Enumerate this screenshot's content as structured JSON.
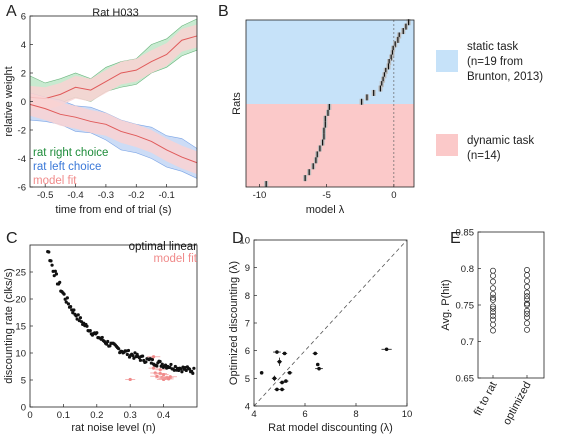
{
  "panel_letters": [
    "A",
    "B",
    "C",
    "D",
    "E"
  ],
  "chart_data": [
    {
      "id": "A",
      "type": "line",
      "title": "Rat H033",
      "xlabel": "time from end of trial (s)",
      "ylabel": "relative weight",
      "xlim": [
        -0.55,
        0.0
      ],
      "ylim": [
        -6,
        6
      ],
      "xticks": [
        -0.5,
        -0.4,
        -0.3,
        -0.2,
        -0.1
      ],
      "xtick_labels": [
        "-0.5",
        "-0.4",
        "-0.3",
        "-0.2",
        "-0.1"
      ],
      "yticks": [
        -6,
        -4,
        -2,
        0,
        2,
        4,
        6
      ],
      "ytick_labels": [
        "-6",
        "-4",
        "-2",
        "0",
        "2",
        "4",
        "6"
      ],
      "legend": [
        {
          "name": "rat right choice",
          "color": "#1e8c3a"
        },
        {
          "name": "rat left choice",
          "color": "#3a78d8"
        },
        {
          "name": "model fit",
          "color": "#f08a8a"
        }
      ],
      "legend_position": "bottom-left",
      "series": [
        {
          "name": "rat right choice",
          "x": [
            -0.55,
            -0.5,
            -0.45,
            -0.4,
            -0.35,
            -0.3,
            -0.25,
            -0.2,
            -0.15,
            -0.1,
            -0.05,
            0.0
          ],
          "upper": [
            1.8,
            1.3,
            1.6,
            2.0,
            1.6,
            2.4,
            2.8,
            3.0,
            4.0,
            4.4,
            5.3,
            5.8
          ],
          "lower": [
            -0.4,
            -0.3,
            -0.1,
            0.3,
            0.0,
            0.7,
            1.0,
            1.2,
            2.0,
            2.4,
            3.2,
            3.6
          ],
          "color": "#c8ead0"
        },
        {
          "name": "rat left choice",
          "x": [
            -0.55,
            -0.5,
            -0.45,
            -0.4,
            -0.35,
            -0.3,
            -0.25,
            -0.2,
            -0.15,
            -0.1,
            -0.05,
            0.0
          ],
          "upper": [
            0.6,
            0.3,
            0.1,
            -0.3,
            -0.4,
            -0.8,
            -1.3,
            -1.6,
            -1.8,
            -2.4,
            -2.6,
            -3.3
          ],
          "lower": [
            -1.3,
            -1.4,
            -1.6,
            -2.1,
            -2.2,
            -2.7,
            -3.4,
            -3.6,
            -4.0,
            -4.6,
            -4.9,
            -5.4
          ],
          "color": "#ccdcf6"
        },
        {
          "name": "model fit (upper)",
          "x": [
            -0.55,
            -0.5,
            -0.45,
            -0.4,
            -0.35,
            -0.3,
            -0.25,
            -0.2,
            -0.15,
            -0.1,
            -0.05,
            0.0
          ],
          "y": [
            0.3,
            0.2,
            0.5,
            1.0,
            0.8,
            1.4,
            2.0,
            2.2,
            2.8,
            3.3,
            4.3,
            4.6
          ],
          "band": 0.8,
          "color": "#f08a8a",
          "band_color": "#f9d2d2"
        },
        {
          "name": "model fit (lower)",
          "x": [
            -0.55,
            -0.5,
            -0.45,
            -0.4,
            -0.35,
            -0.3,
            -0.25,
            -0.2,
            -0.15,
            -0.1,
            -0.05,
            0.0
          ],
          "y": [
            -0.2,
            -0.5,
            -0.9,
            -1.1,
            -1.4,
            -1.6,
            -2.1,
            -2.4,
            -2.8,
            -3.4,
            -3.9,
            -4.3
          ],
          "band": 0.8,
          "color": "#f08a8a",
          "band_color": "#f9d2d2"
        }
      ]
    },
    {
      "id": "B",
      "type": "scatter",
      "xlabel": "model λ",
      "ylabel": "Rats",
      "xlim": [
        -11,
        1.5
      ],
      "xticks": [
        -10,
        -5,
        0
      ],
      "xtick_labels": [
        "-10",
        "-5",
        "0"
      ],
      "vline": 0,
      "groups": [
        {
          "name": "static task",
          "note": "(n=19 from",
          "note2": "Brunton, 2013)",
          "color": "#c6e2f9",
          "n": 19
        },
        {
          "name": "dynamic task",
          "note": "(n=14)",
          "color": "#fbc9c9",
          "n": 14
        }
      ],
      "static_lambdas": [
        1.1,
        0.9,
        0.7,
        0.4,
        0.3,
        0.1,
        -0.05,
        -0.1,
        -0.2,
        -0.35,
        -0.4,
        -0.6,
        -0.7,
        -0.8,
        -0.9,
        -1.0,
        -1.5,
        -2.0,
        -2.4
      ],
      "dynamic_lambdas": [
        -4.8,
        -4.9,
        -5.1,
        -5.1,
        -5.2,
        -5.2,
        -5.3,
        -5.5,
        -5.7,
        -5.8,
        -6.0,
        -6.3,
        -6.6,
        -9.5
      ]
    },
    {
      "id": "C",
      "type": "scatter",
      "xlabel": "rat noise level (n)",
      "ylabel": "discounting rate (clks/s)",
      "xlim": [
        0,
        0.5
      ],
      "ylim": [
        0,
        30
      ],
      "xticks": [
        0,
        0.1,
        0.2,
        0.3,
        0.4
      ],
      "xtick_labels": [
        "0",
        "0.1",
        "0.2",
        "0.3",
        "0.4"
      ],
      "yticks": [
        0,
        5,
        10,
        15,
        20,
        25
      ],
      "ytick_labels": [
        "0",
        "5",
        "10",
        "15",
        "20",
        "25"
      ],
      "legend": [
        {
          "name": "optimal linear",
          "color": "#111111"
        },
        {
          "name": "model fit",
          "color": "#f08a8a"
        }
      ],
      "legend_position": "top-right",
      "optimal_curve": {
        "a": 3.2,
        "b": 0.06,
        "c": 0.9
      },
      "model_fit_points": [
        {
          "x": 0.37,
          "y": 9.3,
          "xerr": 0.02
        },
        {
          "x": 0.37,
          "y": 7.2,
          "xerr": 0.015
        },
        {
          "x": 0.375,
          "y": 6.3,
          "xerr": 0.015
        },
        {
          "x": 0.38,
          "y": 5.7,
          "xerr": 0.02
        },
        {
          "x": 0.39,
          "y": 6.9,
          "xerr": 0.015
        },
        {
          "x": 0.39,
          "y": 6.2,
          "xerr": 0.02
        },
        {
          "x": 0.395,
          "y": 5.4,
          "xerr": 0.02
        },
        {
          "x": 0.4,
          "y": 5.1,
          "xerr": 0.02
        },
        {
          "x": 0.4,
          "y": 6.0,
          "xerr": 0.015
        },
        {
          "x": 0.405,
          "y": 5.3,
          "xerr": 0.02
        },
        {
          "x": 0.41,
          "y": 5.5,
          "xerr": 0.02
        },
        {
          "x": 0.415,
          "y": 5.2,
          "xerr": 0.015
        },
        {
          "x": 0.42,
          "y": 5.6,
          "xerr": 0.02
        },
        {
          "x": 0.3,
          "y": 5.1,
          "xerr": 0.015
        }
      ]
    },
    {
      "id": "D",
      "type": "scatter",
      "xlabel": "Rat model discounting (λ)",
      "ylabel": "Optimized discounting (λ)",
      "xlim": [
        4,
        10
      ],
      "ylim": [
        4,
        10
      ],
      "xticks": [
        4,
        6,
        8,
        10
      ],
      "xtick_labels": [
        "4",
        "6",
        "8",
        "10"
      ],
      "yticks": [
        4,
        5,
        6,
        7,
        8,
        9,
        10
      ],
      "ytick_labels": [
        "4",
        "5",
        "6",
        "7",
        "8",
        "9",
        "10"
      ],
      "diagonal": true,
      "points": [
        {
          "x": 4.3,
          "y": 5.2,
          "xerr": 0.05,
          "yerr": 0.05
        },
        {
          "x": 4.8,
          "y": 5.0,
          "xerr": 0.1,
          "yerr": 0.1
        },
        {
          "x": 4.9,
          "y": 5.95,
          "xerr": 0.15,
          "yerr": 0.05
        },
        {
          "x": 4.9,
          "y": 4.6,
          "xerr": 0.1,
          "yerr": 0.05
        },
        {
          "x": 5.0,
          "y": 5.6,
          "xerr": 0.1,
          "yerr": 0.15
        },
        {
          "x": 5.1,
          "y": 4.85,
          "xerr": 0.1,
          "yerr": 0.05
        },
        {
          "x": 5.1,
          "y": 4.6,
          "xerr": 0.1,
          "yerr": 0.05
        },
        {
          "x": 5.2,
          "y": 5.9,
          "xerr": 0.1,
          "yerr": 0.05
        },
        {
          "x": 5.25,
          "y": 4.9,
          "xerr": 0.1,
          "yerr": 0.05
        },
        {
          "x": 5.4,
          "y": 5.2,
          "xerr": 0.1,
          "yerr": 0.05
        },
        {
          "x": 6.4,
          "y": 5.9,
          "xerr": 0.1,
          "yerr": 0.05
        },
        {
          "x": 6.5,
          "y": 5.5,
          "xerr": 0.05,
          "yerr": 0.05
        },
        {
          "x": 6.55,
          "y": 5.35,
          "xerr": 0.15,
          "yerr": 0.05
        },
        {
          "x": 9.2,
          "y": 6.05,
          "xerr": 0.2,
          "yerr": 0.05
        }
      ]
    },
    {
      "id": "E",
      "type": "scatter",
      "ylabel": "Avg. P(hit)",
      "ylim": [
        0.65,
        0.85
      ],
      "yticks": [
        0.65,
        0.7,
        0.75,
        0.8,
        0.85
      ],
      "ytick_labels": [
        "0.65",
        "0.7",
        "0.75",
        "0.8",
        "0.85"
      ],
      "categories": [
        "fit to rat",
        "optimized"
      ],
      "series": [
        {
          "name": "fit to rat",
          "values": [
            0.715,
            0.723,
            0.73,
            0.74,
            0.748,
            0.757,
            0.765,
            0.773,
            0.782,
            0.79,
            0.797,
            0.735,
            0.745,
            0.76
          ]
        },
        {
          "name": "optimized",
          "values": [
            0.716,
            0.725,
            0.733,
            0.742,
            0.75,
            0.758,
            0.767,
            0.775,
            0.783,
            0.791,
            0.798,
            0.738,
            0.752,
            0.762
          ]
        }
      ]
    }
  ]
}
